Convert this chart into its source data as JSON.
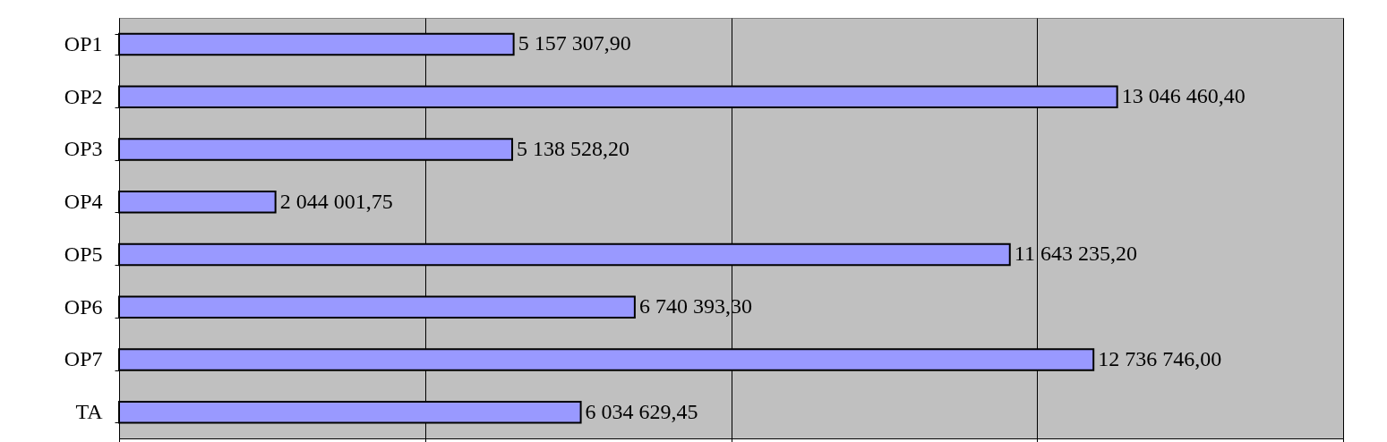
{
  "chart_data": {
    "type": "bar",
    "orientation": "horizontal",
    "categories": [
      "OP1",
      "OP2",
      "OP3",
      "OP4",
      "OP5",
      "OP6",
      "OP7",
      "TA"
    ],
    "values": [
      5157307.9,
      13046460.4,
      5138528.2,
      2044001.75,
      11643235.2,
      6740393.3,
      12736746.0,
      6034629.45
    ],
    "value_labels": [
      "5 157 307,90",
      "13 046 460,40",
      "5 138 528,20",
      "2 044 001,75",
      "11 643 235,20",
      "6 740 393,30",
      "12 736 746,00",
      "6 034 629,45"
    ],
    "color": "#9999ff",
    "xlim": [
      0,
      16000000
    ],
    "xticks": [
      {
        "value": 0,
        "label": null
      },
      {
        "value": 4000000,
        "label": null
      },
      {
        "value": 8000000,
        "label": null
      },
      {
        "value": 12000000,
        "label": null
      },
      {
        "value": 16000000,
        "label": null
      }
    ],
    "grid": "x",
    "tick_labels": "y"
  }
}
